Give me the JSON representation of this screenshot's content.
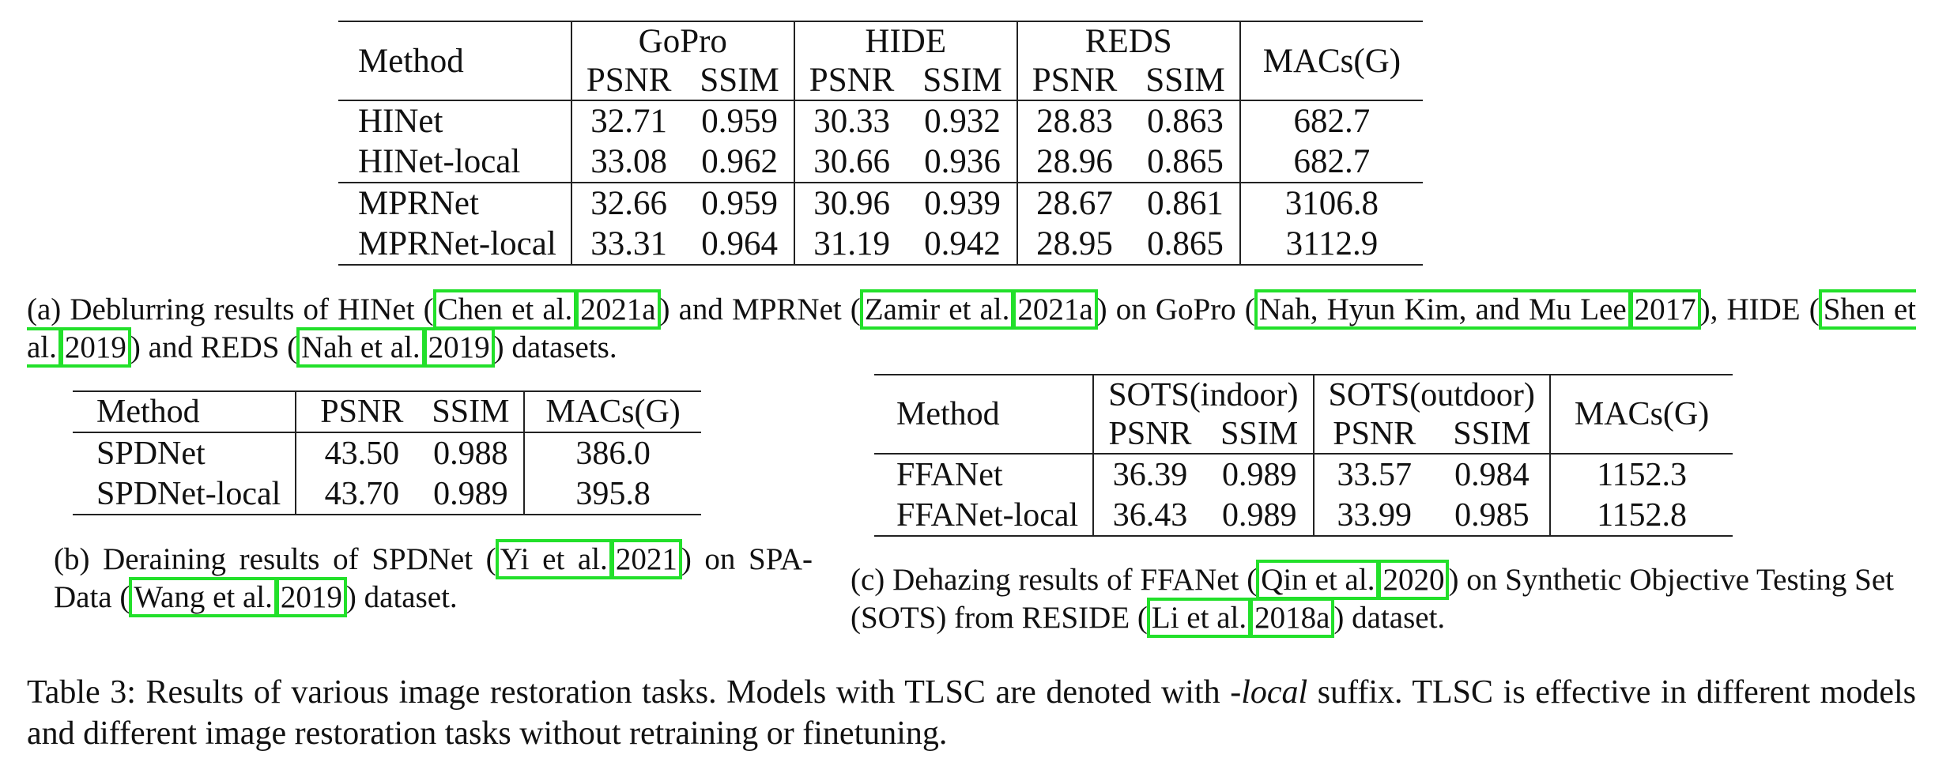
{
  "table_a": {
    "method_header": "Method",
    "groups": [
      "GoPro",
      "HIDE",
      "REDS"
    ],
    "metrics": [
      "PSNR",
      "SSIM"
    ],
    "macs_header": "MACs(G)",
    "rows": [
      {
        "method": "HINet",
        "values": [
          "32.71",
          "0.959",
          "30.33",
          "0.932",
          "28.83",
          "0.863"
        ],
        "macs": "682.7"
      },
      {
        "method": "HINet-local",
        "values": [
          "33.08",
          "0.962",
          "30.66",
          "0.936",
          "28.96",
          "0.865"
        ],
        "macs": "682.7"
      },
      {
        "method": "MPRNet",
        "values": [
          "32.66",
          "0.959",
          "30.96",
          "0.939",
          "28.67",
          "0.861"
        ],
        "macs": "3106.8"
      },
      {
        "method": "MPRNet-local",
        "values": [
          "33.31",
          "0.964",
          "31.19",
          "0.942",
          "28.95",
          "0.865"
        ],
        "macs": "3112.9"
      }
    ],
    "caption": {
      "t1": "(a) Deblurring results of HINet (",
      "c1a": "Chen et al.",
      "c1b": "2021a",
      "t2": ") and MPRNet (",
      "c2a": "Zamir et al.",
      "c2b": "2021a",
      "t3": ") on GoPro (",
      "c3a": "Nah, Hyun Kim, and Mu Lee",
      "c3b": "2017",
      "t4": "), HIDE (",
      "c4a": "Shen et al.",
      "c4b": "2019",
      "t5": ") and REDS (",
      "c5a": "Nah et al.",
      "c5b": "2019",
      "t6": ") datasets."
    }
  },
  "table_b": {
    "headers": [
      "Method",
      "PSNR",
      "SSIM",
      "MACs(G)"
    ],
    "rows": [
      {
        "method": "SPDNet",
        "psnr": "43.50",
        "ssim": "0.988",
        "macs": "386.0"
      },
      {
        "method": "SPDNet-local",
        "psnr": "43.70",
        "ssim": "0.989",
        "macs": "395.8"
      }
    ],
    "caption": {
      "t1": "(b) Deraining results of SPDNet (",
      "c1a": "Yi et al.",
      "c1b": "2021",
      "t2": ") on SPA-Data (",
      "c2a": "Wang et al.",
      "c2b": "2019",
      "t3": ") dataset."
    }
  },
  "table_c": {
    "method_header": "Method",
    "groups": [
      "SOTS(indoor)",
      "SOTS(outdoor)"
    ],
    "metrics": [
      "PSNR",
      "SSIM"
    ],
    "macs_header": "MACs(G)",
    "rows": [
      {
        "method": "FFANet",
        "values": [
          "36.39",
          "0.989",
          "33.57",
          "0.984"
        ],
        "macs": "1152.3"
      },
      {
        "method": "FFANet-local",
        "values": [
          "36.43",
          "0.989",
          "33.99",
          "0.985"
        ],
        "macs": "1152.8"
      }
    ],
    "caption": {
      "t1": "(c) Dehazing results of FFANet (",
      "c1a": "Qin et al.",
      "c1b": "2020",
      "t2": ") on Synthetic Objective Testing Set (SOTS) from RESIDE (",
      "c2a": "Li et al.",
      "c2b": "2018a",
      "t3": ") dataset."
    }
  },
  "main_caption": {
    "prefix": "Table 3: Results of various image restoration tasks. Models with TLSC are denoted with ",
    "emph": "-local",
    "suffix": " suffix. TLSC is effective in different models and different image restoration tasks without retraining or finetuning."
  }
}
